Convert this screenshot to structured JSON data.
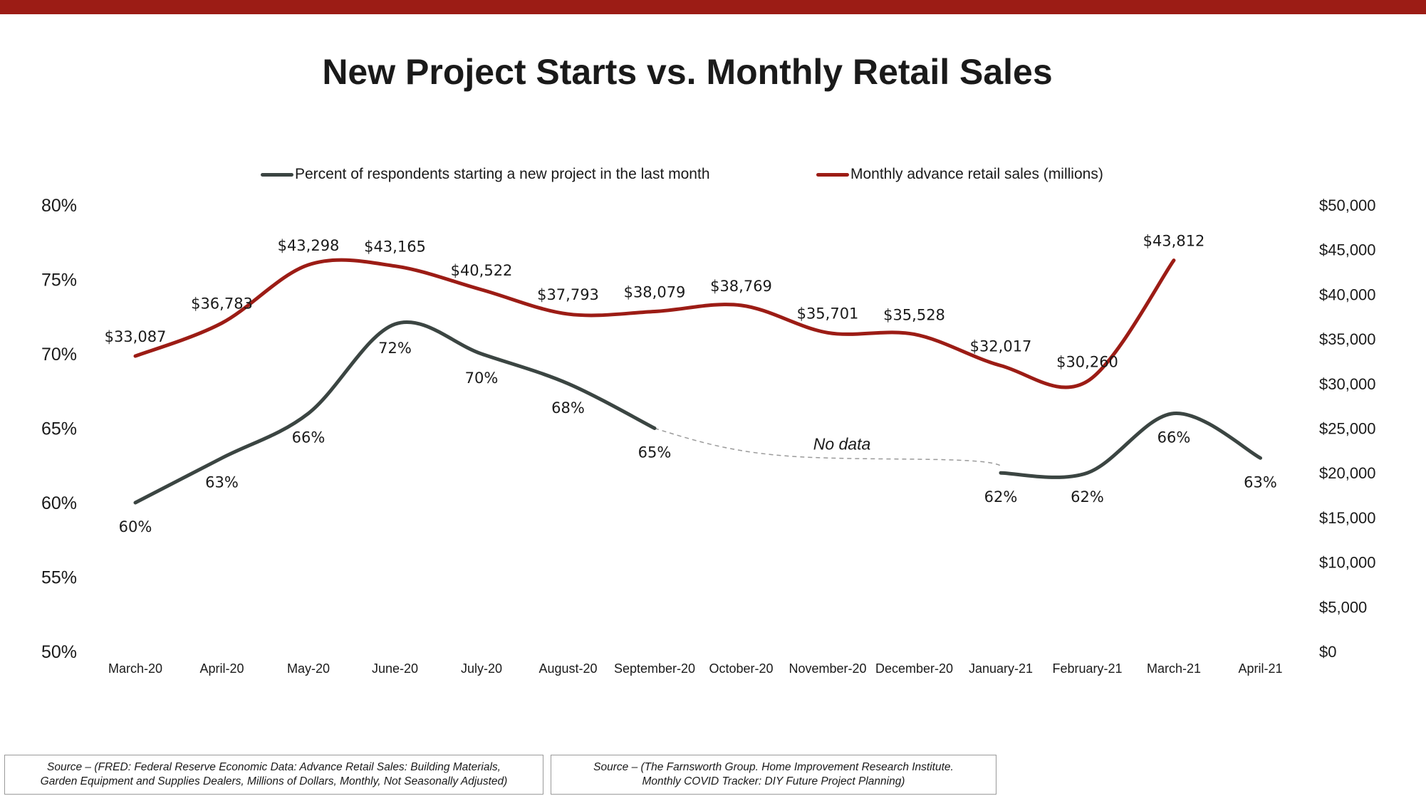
{
  "header": {
    "bar_color": "#9c1c15"
  },
  "chart_data": {
    "type": "line",
    "title": "New Project Starts vs. Monthly Retail Sales",
    "categories": [
      "March-20",
      "April-20",
      "May-20",
      "June-20",
      "July-20",
      "August-20",
      "September-20",
      "October-20",
      "November-20",
      "December-20",
      "January-21",
      "February-21",
      "March-21",
      "April-21"
    ],
    "series": [
      {
        "name": "Percent of respondents starting a new project in the last month",
        "axis": "left",
        "color": "#3b4542",
        "values": [
          60,
          63,
          66,
          72,
          70,
          68,
          65,
          null,
          null,
          null,
          62,
          62,
          66,
          63
        ],
        "labels": [
          "60%",
          "63%",
          "66%",
          "72%",
          "70%",
          "68%",
          "65%",
          null,
          null,
          null,
          "62%",
          "62%",
          "66%",
          "63%"
        ]
      },
      {
        "name": "Monthly advance retail sales (millions)",
        "axis": "right",
        "color": "#9c1c15",
        "values": [
          33087,
          36783,
          43298,
          43165,
          40522,
          37793,
          38079,
          38769,
          35701,
          35528,
          32017,
          30260,
          43812,
          null
        ],
        "labels": [
          "$33,087",
          "$36,783",
          "$43,298",
          "$43,165",
          "$40,522",
          "$37,793",
          "$38,079",
          "$38,769",
          "$35,701",
          "$35,528",
          "$32,017",
          "$30,260",
          "$43,812",
          null
        ]
      }
    ],
    "y_left": {
      "min": 50,
      "max": 80,
      "ticks": [
        "50%",
        "55%",
        "60%",
        "65%",
        "70%",
        "75%",
        "80%"
      ]
    },
    "y_right": {
      "min": 0,
      "max": 50000,
      "ticks": [
        "$0",
        "$5,000",
        "$10,000",
        "$15,000",
        "$20,000",
        "$25,000",
        "$30,000",
        "$35,000",
        "$40,000",
        "$45,000",
        "$50,000"
      ]
    },
    "annotation": {
      "text": "No data",
      "gap_from": "September-20",
      "gap_to": "January-21"
    },
    "legend_position": "top",
    "grid": false
  },
  "sources": [
    {
      "text": "Source – (FRED: Federal Reserve Economic Data: Advance Retail Sales: Building Materials,\nGarden Equipment and Supplies Dealers, Millions of Dollars, Monthly, Not Seasonally Adjusted)"
    },
    {
      "text": "Source – (The Farnsworth Group.  Home Improvement Research Institute.\nMonthly COVID Tracker: DIY Future Project Planning)"
    }
  ]
}
